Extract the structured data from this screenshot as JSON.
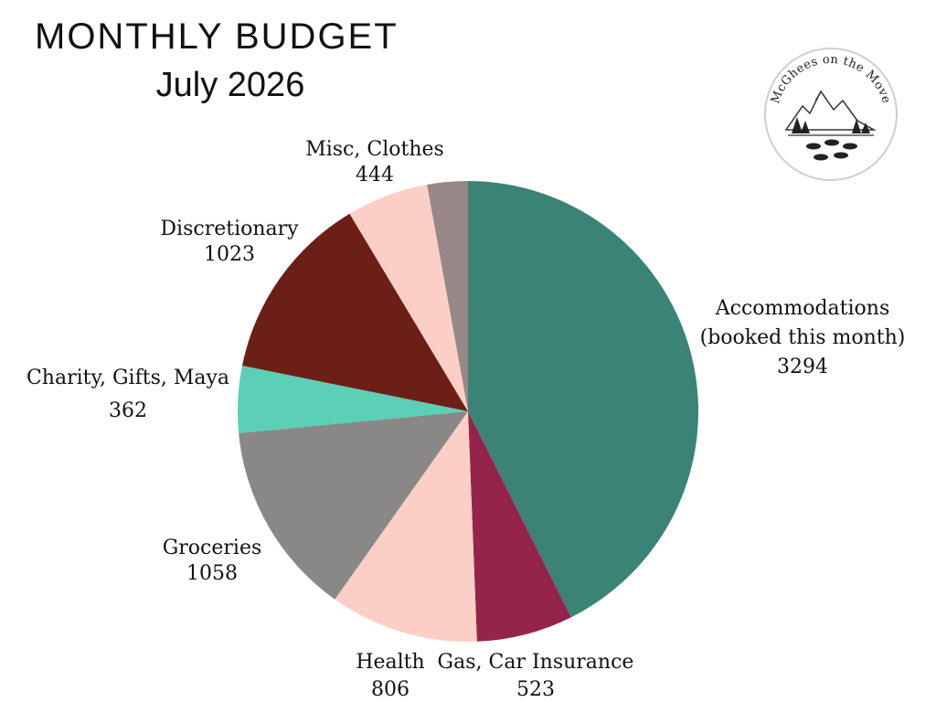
{
  "chart_data": {
    "type": "pie",
    "title": "MONTHLY BUDGET",
    "subtitle": "July 2026",
    "start_angle_deg": 0,
    "direction": "clockwise",
    "slices": [
      {
        "label": "Accommodations (booked this month)",
        "label_lines": [
          "Accommodations",
          "(booked this month)"
        ],
        "value": "3294",
        "amount": 3294,
        "color": "#3b8374"
      },
      {
        "label": "Gas, Car Insurance",
        "label_lines": [
          "Gas, Car Insurance"
        ],
        "value": "523",
        "amount": 523,
        "color": "#95244a"
      },
      {
        "label": "Health",
        "label_lines": [
          "Health"
        ],
        "value": "806",
        "amount": 806,
        "color": "#fbcfc5"
      },
      {
        "label": "Groceries",
        "label_lines": [
          "Groceries"
        ],
        "value": "1058",
        "amount": 1058,
        "color": "#898887"
      },
      {
        "label": "Charity, Gifts, Maya",
        "label_lines": [
          "Charity, Gifts, Maya"
        ],
        "value": "362",
        "amount": 362,
        "color": "#5ccfb7"
      },
      {
        "label": "Discretionary",
        "label_lines": [
          "Discretionary"
        ],
        "value": "1023",
        "amount": 1023,
        "color": "#6c1f17"
      },
      {
        "label": "Misc, Clothes",
        "label_lines": [
          "Misc, Clothes"
        ],
        "value": "444",
        "amount": 444,
        "color": "#fbcfc5"
      },
      {
        "label": "",
        "label_lines": [],
        "value": "",
        "amount": 220,
        "color": "#988888"
      }
    ]
  },
  "logo": {
    "text": "McGhees on the Move",
    "icon": "mountain-footprints-logo"
  }
}
